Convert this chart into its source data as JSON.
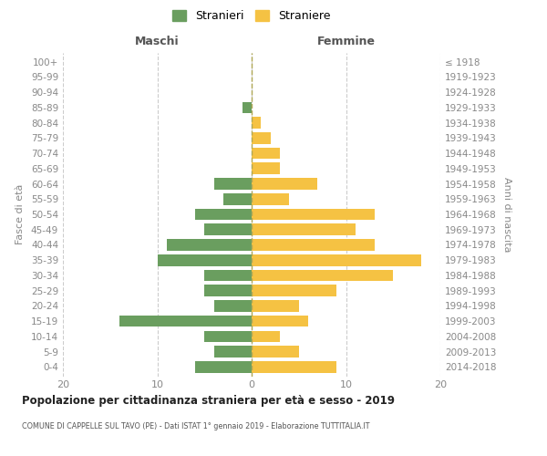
{
  "age_groups": [
    "0-4",
    "5-9",
    "10-14",
    "15-19",
    "20-24",
    "25-29",
    "30-34",
    "35-39",
    "40-44",
    "45-49",
    "50-54",
    "55-59",
    "60-64",
    "65-69",
    "70-74",
    "75-79",
    "80-84",
    "85-89",
    "90-94",
    "95-99",
    "100+"
  ],
  "birth_years": [
    "2014-2018",
    "2009-2013",
    "2004-2008",
    "1999-2003",
    "1994-1998",
    "1989-1993",
    "1984-1988",
    "1979-1983",
    "1974-1978",
    "1969-1973",
    "1964-1968",
    "1959-1963",
    "1954-1958",
    "1949-1953",
    "1944-1948",
    "1939-1943",
    "1934-1938",
    "1929-1933",
    "1924-1928",
    "1919-1923",
    "≤ 1918"
  ],
  "maschi": [
    6,
    4,
    5,
    14,
    4,
    5,
    5,
    10,
    9,
    5,
    6,
    3,
    4,
    0,
    0,
    0,
    0,
    1,
    0,
    0,
    0
  ],
  "femmine": [
    9,
    5,
    3,
    6,
    5,
    9,
    15,
    18,
    13,
    11,
    13,
    4,
    7,
    3,
    3,
    2,
    1,
    0,
    0,
    0,
    0
  ],
  "maschi_color": "#6a9e5f",
  "femmine_color": "#f5c243",
  "title": "Popolazione per cittadinanza straniera per età e sesso - 2019",
  "subtitle": "COMUNE DI CAPPELLE SUL TAVO (PE) - Dati ISTAT 1° gennaio 2019 - Elaborazione TUTTITALIA.IT",
  "ylabel_left": "Fasce di età",
  "ylabel_right": "Anni di nascita",
  "header_left": "Maschi",
  "header_right": "Femmine",
  "legend_stranieri": "Stranieri",
  "legend_straniere": "Straniere",
  "xlim": 20,
  "background_color": "#ffffff",
  "grid_color": "#cccccc",
  "bar_height": 0.75
}
